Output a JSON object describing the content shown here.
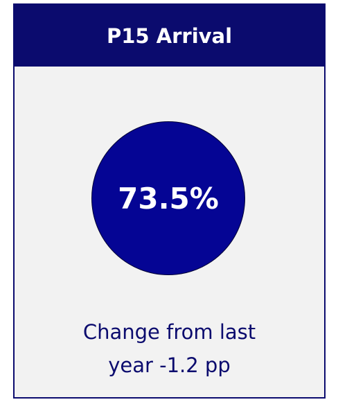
{
  "header": {
    "title": "P15 Arrival"
  },
  "kpi": {
    "value": "73.5%"
  },
  "note": "Change from last year -1.2 pp"
}
